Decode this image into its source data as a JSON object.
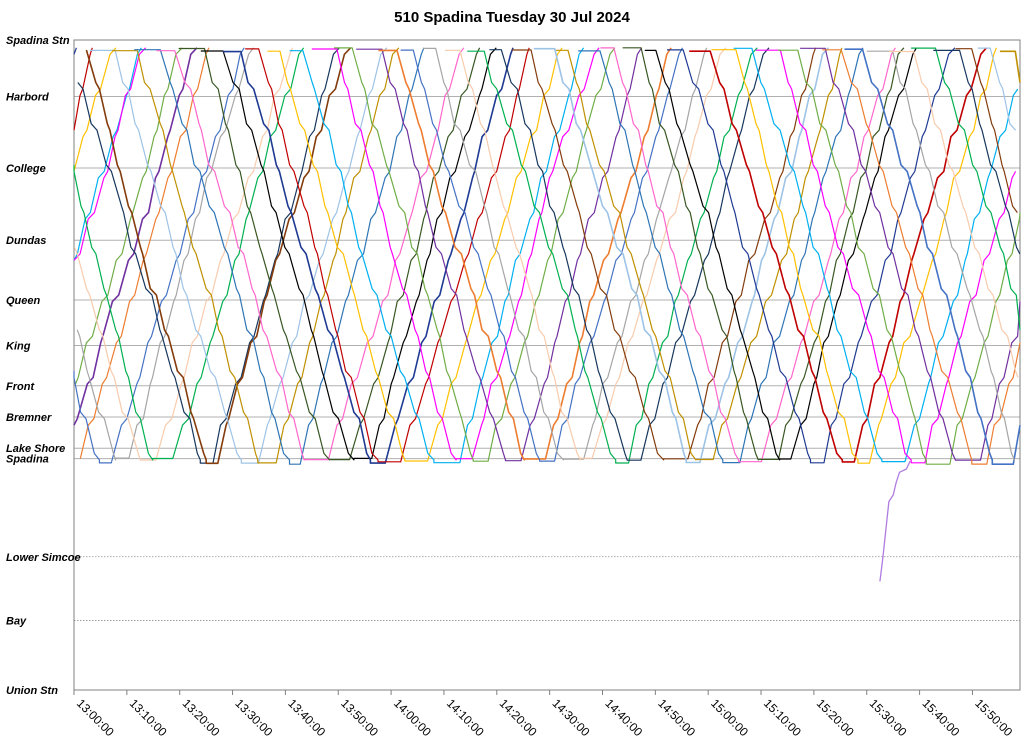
{
  "chart_data": {
    "type": "line",
    "title": "510 Spadina Tuesday 30 Jul 2024",
    "xlabel": "",
    "ylabel": "",
    "grid": true,
    "legend": "none",
    "x_range": [
      "13:00:00",
      "15:59:00"
    ],
    "x_ticks": [
      "13:00:00",
      "13:10:00",
      "13:20:00",
      "13:30:00",
      "13:40:00",
      "13:50:00",
      "14:00:00",
      "14:10:00",
      "14:20:00",
      "14:30:00",
      "14:40:00",
      "14:50:00",
      "15:00:00",
      "15:10:00",
      "15:20:00",
      "15:30:00",
      "15:40:00",
      "15:50:00"
    ],
    "stops": [
      {
        "name": "Spadina Stn",
        "pos": 0,
        "grid": "solid"
      },
      {
        "name": "Harbord",
        "pos": 0.087,
        "grid": "solid"
      },
      {
        "name": "College",
        "pos": 0.197,
        "grid": "solid"
      },
      {
        "name": "Dundas",
        "pos": 0.308,
        "grid": "solid"
      },
      {
        "name": "Queen",
        "pos": 0.4,
        "grid": "solid"
      },
      {
        "name": "King",
        "pos": 0.47,
        "grid": "solid"
      },
      {
        "name": "Front",
        "pos": 0.532,
        "grid": "solid"
      },
      {
        "name": "Bremner",
        "pos": 0.58,
        "grid": "solid"
      },
      {
        "name": "Lake Shore",
        "pos": 0.628,
        "grid": "solid"
      },
      {
        "name": "Spadina",
        "pos": 0.644,
        "grid": "solid"
      },
      {
        "name": "Lower Simcoe",
        "pos": 0.795,
        "grid": "dotted"
      },
      {
        "name": "Bay",
        "pos": 0.893,
        "grid": "dotted"
      },
      {
        "name": "Union Stn",
        "pos": 1,
        "grid": "none"
      }
    ],
    "note_y": "stop positions expressed as fraction of route distance from Spadina Stn (0) to Union Stn (1)",
    "palette": [
      "#000000",
      "#1f3a93",
      "#c00000",
      "#ffc000",
      "#00b0f0",
      "#ff00ff",
      "#70ad47",
      "#7030a0",
      "#ed7d31",
      "#4472c4",
      "#a5a5a5",
      "#f8cbad",
      "#00b050",
      "#17375e",
      "#843c0c",
      "#9dc3e6",
      "#bf9000",
      "#2e75b6",
      "#ff66cc",
      "#385723"
    ],
    "series_summary": {
      "trips": "Many streetcar trips shuttling between Spadina Stn and the Spadina/Queens Quay loop; one short trip near 15:33-15:38 runs from near Lower Simcoe up to Spadina",
      "one_way_minutes": 24
    }
  }
}
